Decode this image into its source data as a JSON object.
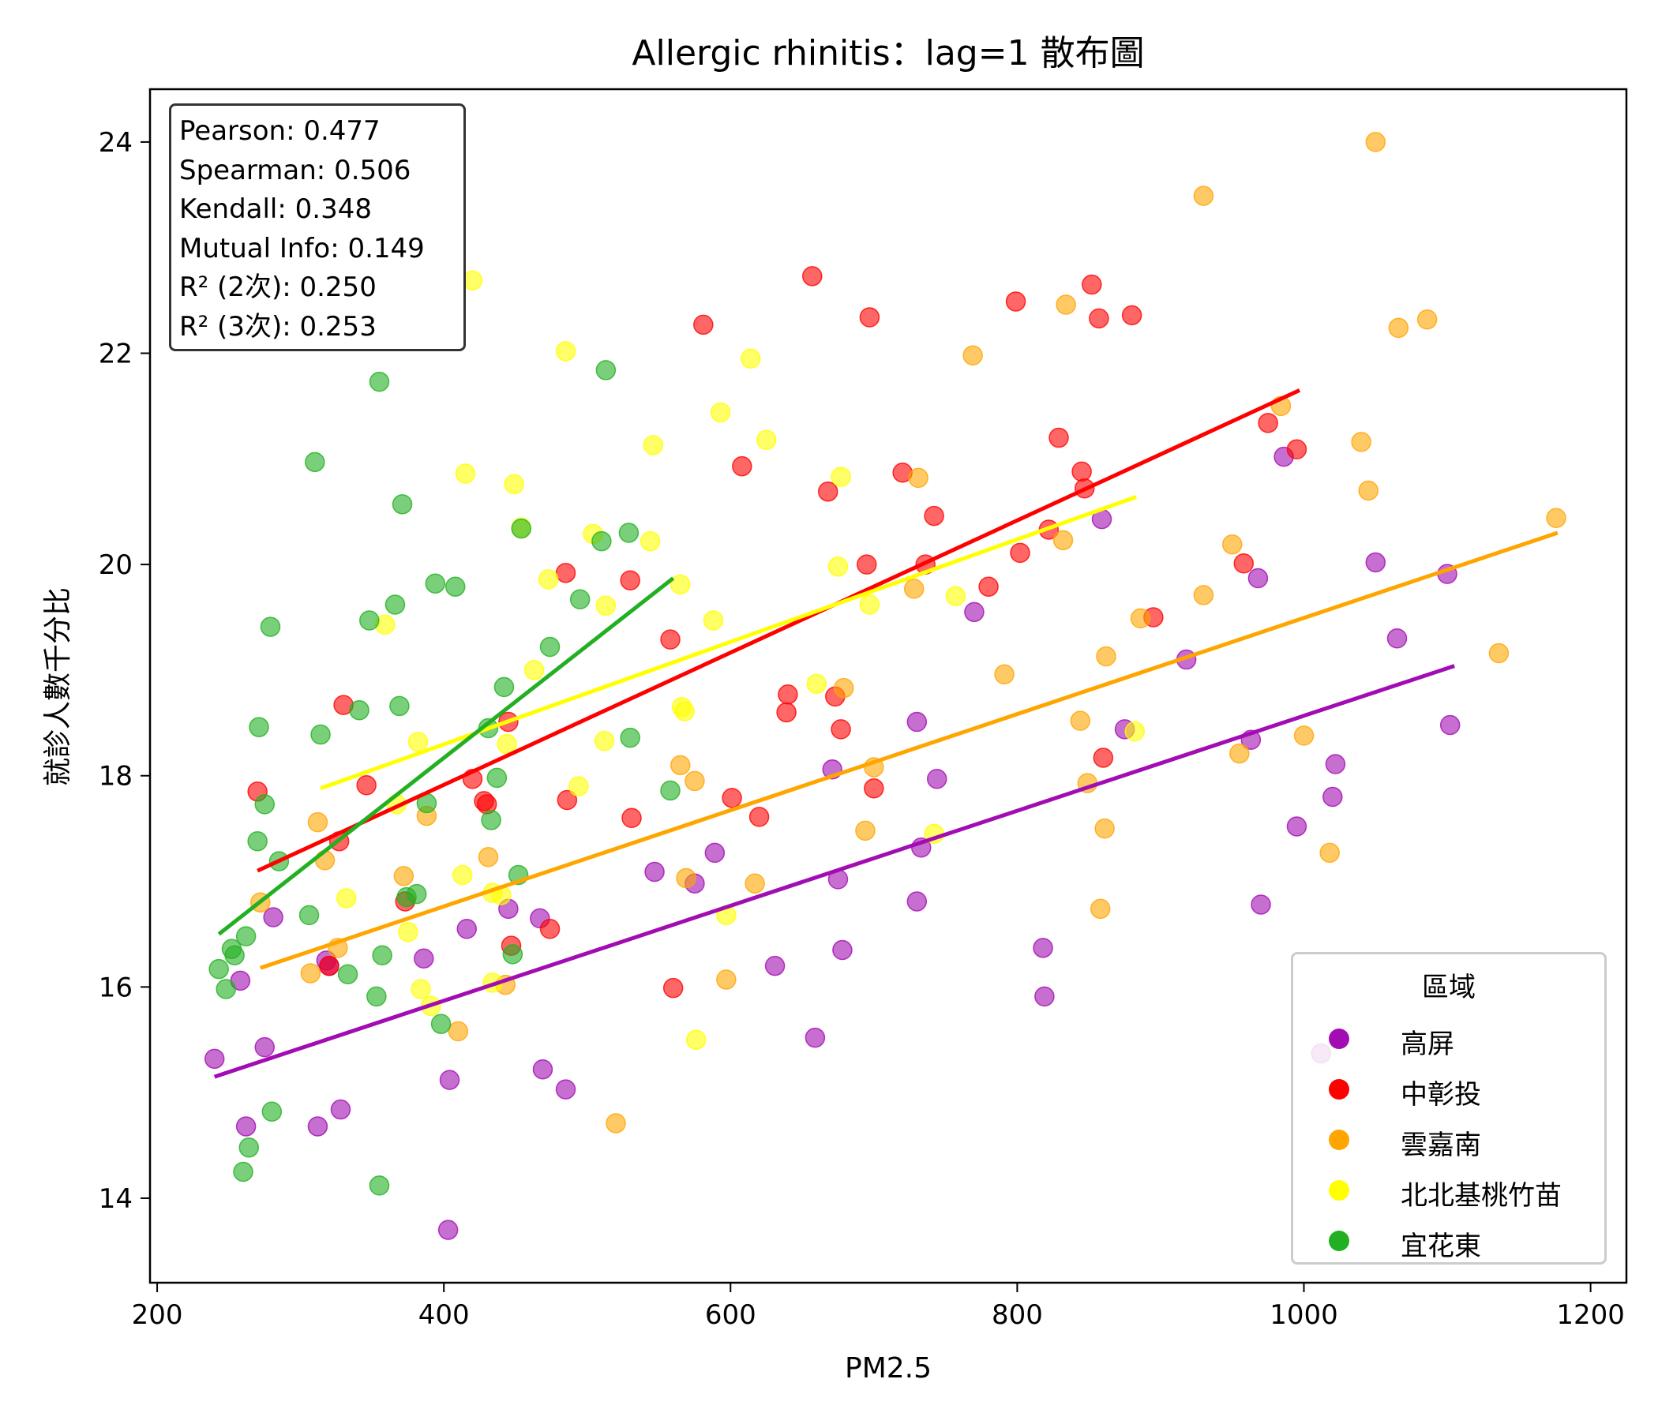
{
  "chart_data": {
    "type": "scatter",
    "title": "Allergic rhinitis：lag=1 散布圖",
    "xlabel": "PM2.5",
    "ylabel": "就診人數千分比",
    "xlim": [
      195,
      1225
    ],
    "ylim": [
      13.2,
      24.5
    ],
    "xticks": [
      200,
      400,
      600,
      800,
      1000,
      1200
    ],
    "yticks": [
      14,
      16,
      18,
      20,
      22,
      24
    ],
    "grid": false,
    "legend_title": "區域",
    "legend_position": "lower-right",
    "stats": [
      "Pearson: 0.477",
      "Spearman: 0.506",
      "Kendall: 0.348",
      "Mutual Info: 0.149",
      "R² (2次): 0.250",
      "R² (3次): 0.253"
    ],
    "series": [
      {
        "name": "高屏",
        "color": "#a20db3",
        "fit": [
          [
            240,
            15.15
          ],
          [
            1105,
            19.04
          ]
        ],
        "points": [
          [
            240,
            15.32
          ],
          [
            258,
            16.06
          ],
          [
            262,
            14.68
          ],
          [
            275,
            15.43
          ],
          [
            281,
            16.66
          ],
          [
            312,
            14.68
          ],
          [
            318,
            16.25
          ],
          [
            320,
            16.2
          ],
          [
            328,
            14.84
          ],
          [
            386,
            16.27
          ],
          [
            403,
            13.7
          ],
          [
            404,
            15.12
          ],
          [
            416,
            16.55
          ],
          [
            445,
            16.74
          ],
          [
            467,
            16.65
          ],
          [
            469,
            15.22
          ],
          [
            485,
            15.03
          ],
          [
            547,
            17.09
          ],
          [
            575,
            16.98
          ],
          [
            589,
            17.27
          ],
          [
            631,
            16.2
          ],
          [
            659,
            15.52
          ],
          [
            671,
            18.06
          ],
          [
            675,
            17.02
          ],
          [
            678,
            16.35
          ],
          [
            730,
            16.81
          ],
          [
            730,
            18.51
          ],
          [
            733,
            17.32
          ],
          [
            744,
            17.97
          ],
          [
            770,
            19.55
          ],
          [
            818,
            16.37
          ],
          [
            819,
            15.91
          ],
          [
            859,
            20.43
          ],
          [
            875,
            18.44
          ],
          [
            918,
            19.1
          ],
          [
            963,
            18.34
          ],
          [
            968,
            19.87
          ],
          [
            970,
            16.78
          ],
          [
            986,
            21.02
          ],
          [
            995,
            17.52
          ],
          [
            1012,
            15.37
          ],
          [
            1020,
            17.8
          ],
          [
            1022,
            18.11
          ],
          [
            1050,
            20.02
          ],
          [
            1065,
            19.3
          ],
          [
            1100,
            19.91
          ],
          [
            1102,
            18.48
          ]
        ]
      },
      {
        "name": "中彰投",
        "color": "#ff0000",
        "fit": [
          [
            270,
            17.1
          ],
          [
            997,
            21.65
          ]
        ],
        "points": [
          [
            270,
            17.85
          ],
          [
            320,
            16.2
          ],
          [
            327,
            17.38
          ],
          [
            330,
            18.67
          ],
          [
            346,
            17.91
          ],
          [
            373,
            16.81
          ],
          [
            420,
            17.97
          ],
          [
            428,
            17.76
          ],
          [
            430,
            17.73
          ],
          [
            445,
            18.51
          ],
          [
            447,
            16.39
          ],
          [
            474,
            16.55
          ],
          [
            485,
            19.92
          ],
          [
            486,
            17.77
          ],
          [
            530,
            19.85
          ],
          [
            531,
            17.6
          ],
          [
            558,
            19.29
          ],
          [
            560,
            15.99
          ],
          [
            581,
            22.27
          ],
          [
            601,
            17.79
          ],
          [
            608,
            20.93
          ],
          [
            620,
            17.61
          ],
          [
            639,
            18.6
          ],
          [
            640,
            18.77
          ],
          [
            657,
            22.73
          ],
          [
            668,
            20.69
          ],
          [
            673,
            18.75
          ],
          [
            677,
            18.44
          ],
          [
            695,
            20.0
          ],
          [
            697,
            22.34
          ],
          [
            700,
            17.88
          ],
          [
            720,
            20.87
          ],
          [
            736,
            20.0
          ],
          [
            742,
            20.46
          ],
          [
            780,
            19.79
          ],
          [
            799,
            22.49
          ],
          [
            802,
            20.11
          ],
          [
            822,
            20.33
          ],
          [
            829,
            21.2
          ],
          [
            845,
            20.88
          ],
          [
            847,
            20.72
          ],
          [
            852,
            22.65
          ],
          [
            857,
            22.33
          ],
          [
            860,
            18.17
          ],
          [
            880,
            22.36
          ],
          [
            895,
            19.5
          ],
          [
            958,
            20.01
          ],
          [
            975,
            21.34
          ],
          [
            995,
            21.09
          ]
        ]
      },
      {
        "name": "雲嘉南",
        "color": "#ffa500",
        "fit": [
          [
            272,
            16.18
          ],
          [
            1177,
            20.3
          ]
        ],
        "points": [
          [
            272,
            16.8
          ],
          [
            307,
            16.13
          ],
          [
            312,
            17.56
          ],
          [
            317,
            17.2
          ],
          [
            326,
            16.37
          ],
          [
            372,
            17.05
          ],
          [
            388,
            17.62
          ],
          [
            410,
            15.58
          ],
          [
            431,
            17.23
          ],
          [
            443,
            16.02
          ],
          [
            520,
            14.71
          ],
          [
            565,
            18.1
          ],
          [
            569,
            17.03
          ],
          [
            575,
            17.95
          ],
          [
            597,
            16.07
          ],
          [
            617,
            16.98
          ],
          [
            679,
            18.83
          ],
          [
            694,
            17.48
          ],
          [
            700,
            18.08
          ],
          [
            728,
            19.77
          ],
          [
            731,
            20.82
          ],
          [
            769,
            21.98
          ],
          [
            791,
            18.96
          ],
          [
            832,
            20.23
          ],
          [
            834,
            22.46
          ],
          [
            844,
            18.52
          ],
          [
            849,
            17.93
          ],
          [
            858,
            16.74
          ],
          [
            861,
            17.5
          ],
          [
            862,
            19.13
          ],
          [
            886,
            19.49
          ],
          [
            930,
            23.49
          ],
          [
            930,
            19.71
          ],
          [
            950,
            20.19
          ],
          [
            955,
            18.21
          ],
          [
            984,
            21.5
          ],
          [
            1000,
            18.38
          ],
          [
            1018,
            17.27
          ],
          [
            1040,
            21.16
          ],
          [
            1045,
            20.7
          ],
          [
            1050,
            24.0
          ],
          [
            1066,
            22.24
          ],
          [
            1086,
            22.32
          ],
          [
            1136,
            19.16
          ],
          [
            1176,
            20.44
          ]
        ]
      },
      {
        "name": "北北基桃竹苗",
        "color": "#ffff00",
        "fit": [
          [
            314,
            17.88
          ],
          [
            883,
            20.64
          ]
        ],
        "points": [
          [
            332,
            16.84
          ],
          [
            359,
            19.43
          ],
          [
            367,
            17.73
          ],
          [
            375,
            16.52
          ],
          [
            382,
            18.32
          ],
          [
            384,
            15.98
          ],
          [
            391,
            15.82
          ],
          [
            413,
            17.06
          ],
          [
            415,
            20.86
          ],
          [
            420,
            22.69
          ],
          [
            434,
            16.04
          ],
          [
            434,
            16.89
          ],
          [
            440,
            16.87
          ],
          [
            444,
            18.3
          ],
          [
            449,
            20.76
          ],
          [
            454,
            20.35
          ],
          [
            463,
            19.0
          ],
          [
            473,
            19.86
          ],
          [
            485,
            22.02
          ],
          [
            494,
            17.9
          ],
          [
            504,
            20.29
          ],
          [
            512,
            18.33
          ],
          [
            513,
            19.61
          ],
          [
            544,
            20.22
          ],
          [
            546,
            21.13
          ],
          [
            565,
            19.81
          ],
          [
            566,
            18.65
          ],
          [
            568,
            18.61
          ],
          [
            576,
            15.5
          ],
          [
            588,
            19.47
          ],
          [
            593,
            21.44
          ],
          [
            597,
            16.68
          ],
          [
            614,
            21.95
          ],
          [
            625,
            21.18
          ],
          [
            660,
            18.87
          ],
          [
            675,
            19.98
          ],
          [
            677,
            20.83
          ],
          [
            697,
            19.62
          ],
          [
            742,
            17.45
          ],
          [
            757,
            19.7
          ],
          [
            882,
            18.42
          ]
        ]
      },
      {
        "name": "宜花東",
        "color": "#22b022",
        "fit": [
          [
            243,
            16.5
          ],
          [
            560,
            19.87
          ]
        ],
        "points": [
          [
            243,
            16.17
          ],
          [
            248,
            15.98
          ],
          [
            252,
            16.36
          ],
          [
            254,
            16.3
          ],
          [
            260,
            14.25
          ],
          [
            262,
            16.48
          ],
          [
            264,
            14.48
          ],
          [
            270,
            17.38
          ],
          [
            271,
            18.46
          ],
          [
            275,
            17.73
          ],
          [
            279,
            19.41
          ],
          [
            280,
            14.82
          ],
          [
            285,
            17.19
          ],
          [
            306,
            16.68
          ],
          [
            310,
            20.97
          ],
          [
            314,
            18.39
          ],
          [
            333,
            16.12
          ],
          [
            341,
            18.62
          ],
          [
            348,
            19.47
          ],
          [
            353,
            15.91
          ],
          [
            355,
            14.12
          ],
          [
            357,
            16.3
          ],
          [
            355,
            21.73
          ],
          [
            366,
            19.62
          ],
          [
            369,
            18.66
          ],
          [
            371,
            20.57
          ],
          [
            374,
            16.85
          ],
          [
            381,
            16.88
          ],
          [
            388,
            17.74
          ],
          [
            394,
            19.82
          ],
          [
            398,
            15.65
          ],
          [
            408,
            19.79
          ],
          [
            431,
            18.45
          ],
          [
            433,
            17.58
          ],
          [
            437,
            17.98
          ],
          [
            442,
            18.84
          ],
          [
            448,
            16.31
          ],
          [
            452,
            17.06
          ],
          [
            454,
            20.34
          ],
          [
            474,
            19.22
          ],
          [
            495,
            19.67
          ],
          [
            510,
            20.22
          ],
          [
            513,
            21.84
          ],
          [
            529,
            20.3
          ],
          [
            530,
            18.36
          ],
          [
            558,
            17.86
          ]
        ]
      }
    ]
  }
}
